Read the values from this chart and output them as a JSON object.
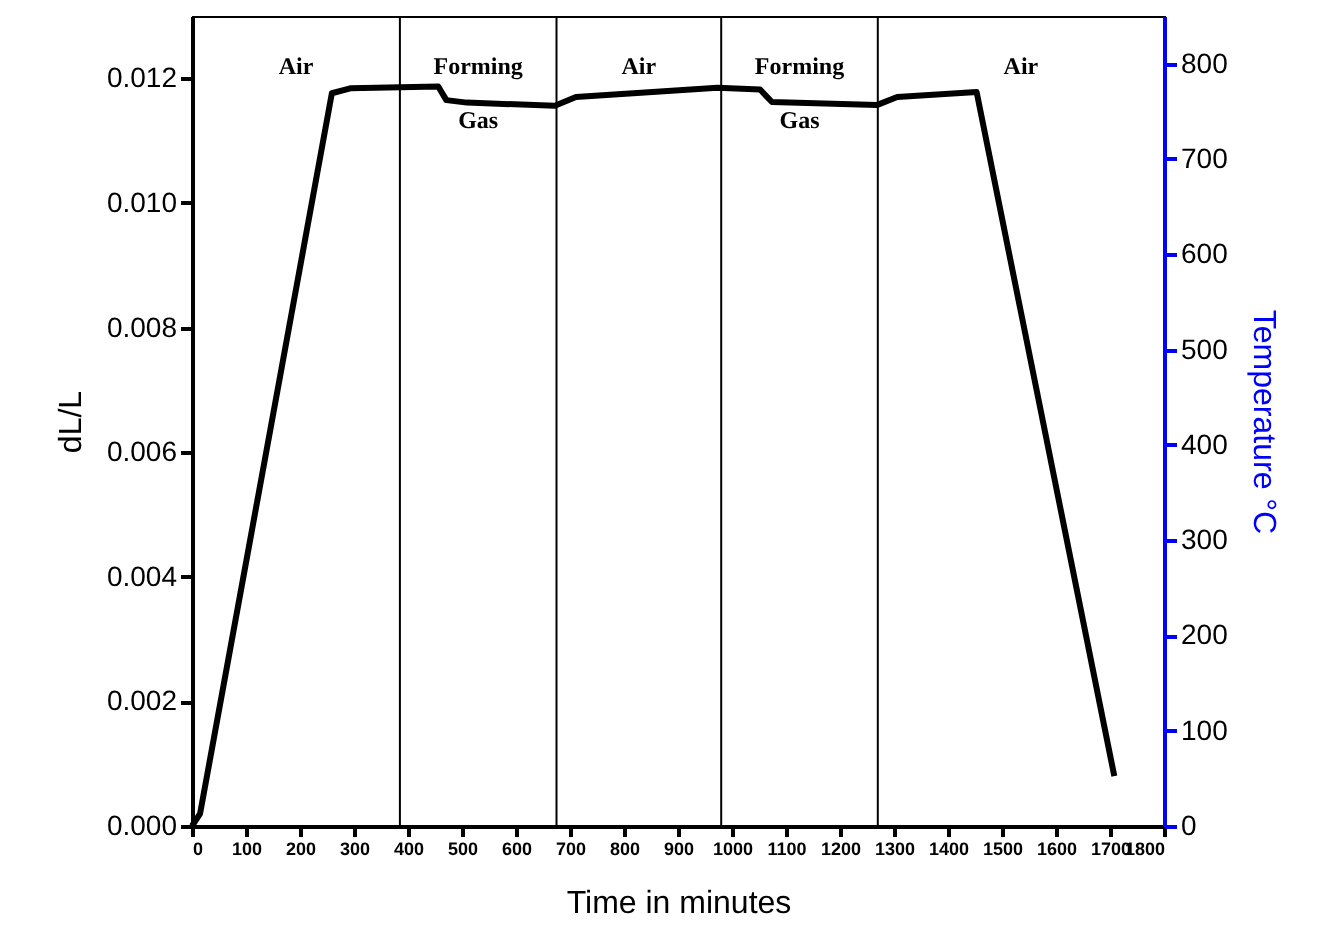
{
  "chart_data": {
    "type": "line",
    "xlabel": "Time in minutes",
    "ylabel": "dL/L",
    "y2label": "Temperature °C",
    "x": [
      0,
      15,
      259,
      293,
      456,
      471,
      509,
      672,
      711,
      973,
      1052,
      1074,
      1268,
      1306,
      1453,
      1708
    ],
    "values": [
      0,
      0.0002,
      0.01176,
      0.01184,
      0.01187,
      0.01165,
      0.01161,
      0.01156,
      0.0117,
      0.01185,
      0.01182,
      0.01162,
      0.01157,
      0.0117,
      0.01178,
      0.0008
    ],
    "color": "#000000",
    "line_style": "solid",
    "xlim": [
      0,
      1800
    ],
    "xticks": [
      0,
      100,
      200,
      300,
      400,
      500,
      600,
      700,
      800,
      900,
      1000,
      1100,
      1200,
      1300,
      1400,
      1500,
      1600,
      1700,
      1800
    ],
    "ylim": [
      0,
      0.013
    ],
    "yticks": [
      {
        "value": 0,
        "label": "0.000"
      },
      {
        "value": 0.002,
        "label": "0.002"
      },
      {
        "value": 0.004,
        "label": "0.004"
      },
      {
        "value": 0.006,
        "label": "0.006"
      },
      {
        "value": 0.008,
        "label": "0.008"
      },
      {
        "value": 0.01,
        "label": "0.010"
      },
      {
        "value": 0.012,
        "label": "0.012"
      }
    ],
    "y2lim": [
      0,
      850
    ],
    "y2ticks": [
      0,
      100,
      200,
      300,
      400,
      500,
      600,
      700,
      800
    ],
    "ref_lines": [
      {
        "axis": "x",
        "value": 385,
        "color": "#000000"
      },
      {
        "axis": "x",
        "value": 675,
        "color": "#000000"
      },
      {
        "axis": "x",
        "value": 980,
        "color": "#000000"
      },
      {
        "axis": "x",
        "value": 1270,
        "color": "#000000"
      }
    ],
    "annotations": [
      "Air",
      "Forming Gas",
      "Air",
      "Forming Gas",
      "Air"
    ],
    "grid": false
  }
}
